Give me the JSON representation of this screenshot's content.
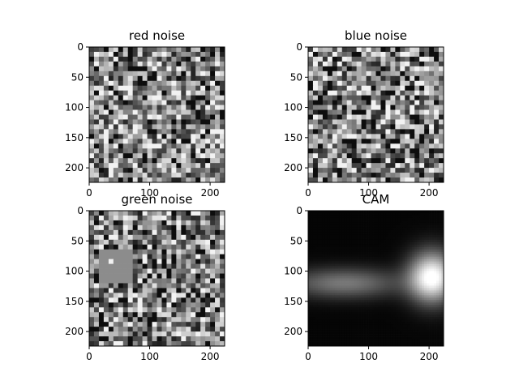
{
  "chart_data": [
    {
      "type": "heatmap",
      "title": "red noise",
      "colormap": "gray",
      "image_size": [
        224,
        224
      ],
      "xlim": [
        0,
        224
      ],
      "ylim": [
        224,
        0
      ],
      "xticks": [
        0,
        100,
        200
      ],
      "yticks": [
        0,
        50,
        100,
        150,
        200
      ],
      "content": "random grayscale blocks"
    },
    {
      "type": "heatmap",
      "title": "blue noise",
      "colormap": "gray",
      "image_size": [
        224,
        224
      ],
      "xlim": [
        0,
        224
      ],
      "ylim": [
        224,
        0
      ],
      "xticks": [
        0,
        100,
        200
      ],
      "yticks": [
        0,
        50,
        100,
        150,
        200
      ],
      "content": "random grayscale blocks"
    },
    {
      "type": "heatmap",
      "title": "green noise",
      "colormap": "gray",
      "image_size": [
        224,
        224
      ],
      "xlim": [
        0,
        224
      ],
      "ylim": [
        224,
        0
      ],
      "xticks": [
        0,
        100,
        200
      ],
      "yticks": [
        0,
        50,
        100,
        150,
        200
      ],
      "content": "random grayscale blocks with uniform gray patch"
    },
    {
      "type": "heatmap",
      "title": "CAM",
      "colormap": "gray",
      "image_size": [
        224,
        224
      ],
      "xlim": [
        0,
        224
      ],
      "ylim": [
        224,
        0
      ],
      "xticks": [
        0,
        100,
        200
      ],
      "yticks": [
        0,
        50,
        100,
        150,
        200
      ],
      "content": "smooth activation map, brightest region at right",
      "hotspots": [
        {
          "x": 205,
          "y": 110,
          "intensity": 1.0
        },
        {
          "x": 60,
          "y": 120,
          "intensity": 0.45
        }
      ]
    }
  ]
}
